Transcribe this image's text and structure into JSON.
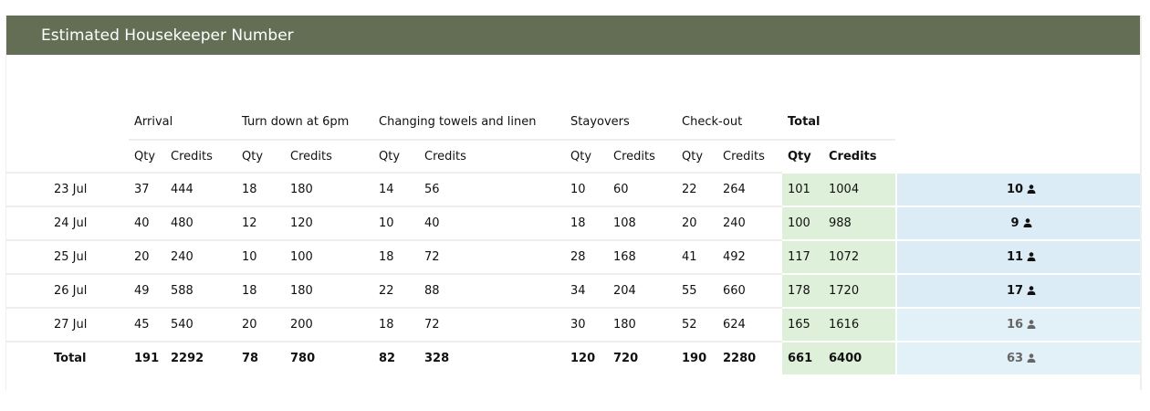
{
  "title": "Estimated Housekeeper Number",
  "groups": [
    "Arrival",
    "Turn down at 6pm",
    "Changing towels and linen",
    "Stayovers",
    "Check-out",
    "Total"
  ],
  "sub": {
    "qty": "Qty",
    "credits": "Credits"
  },
  "rows": [
    {
      "date": "23 Jul",
      "v": [
        "37",
        "444",
        "18",
        "180",
        "14",
        "56",
        "10",
        "60",
        "22",
        "264",
        "101",
        "1004"
      ],
      "hk": "10"
    },
    {
      "date": "24 Jul",
      "v": [
        "40",
        "480",
        "12",
        "120",
        "10",
        "40",
        "18",
        "108",
        "20",
        "240",
        "100",
        "988"
      ],
      "hk": "9"
    },
    {
      "date": "25 Jul",
      "v": [
        "20",
        "240",
        "10",
        "100",
        "18",
        "72",
        "28",
        "168",
        "41",
        "492",
        "117",
        "1072"
      ],
      "hk": "11"
    },
    {
      "date": "26 Jul",
      "v": [
        "49",
        "588",
        "18",
        "180",
        "22",
        "88",
        "34",
        "204",
        "55",
        "660",
        "178",
        "1720"
      ],
      "hk": "17"
    },
    {
      "date": "27 Jul",
      "v": [
        "45",
        "540",
        "20",
        "200",
        "18",
        "72",
        "30",
        "180",
        "52",
        "624",
        "165",
        "1616"
      ],
      "hk": "16"
    },
    {
      "date": "Total",
      "v": [
        "191",
        "2292",
        "78",
        "780",
        "82",
        "328",
        "120",
        "720",
        "190",
        "2280",
        "661",
        "6400"
      ],
      "hk": "63"
    }
  ],
  "icon": "person-icon",
  "colors": {
    "header": "#646e54",
    "total_bg": "#dff0da",
    "housekeeper_bg": "#dbecf6"
  }
}
